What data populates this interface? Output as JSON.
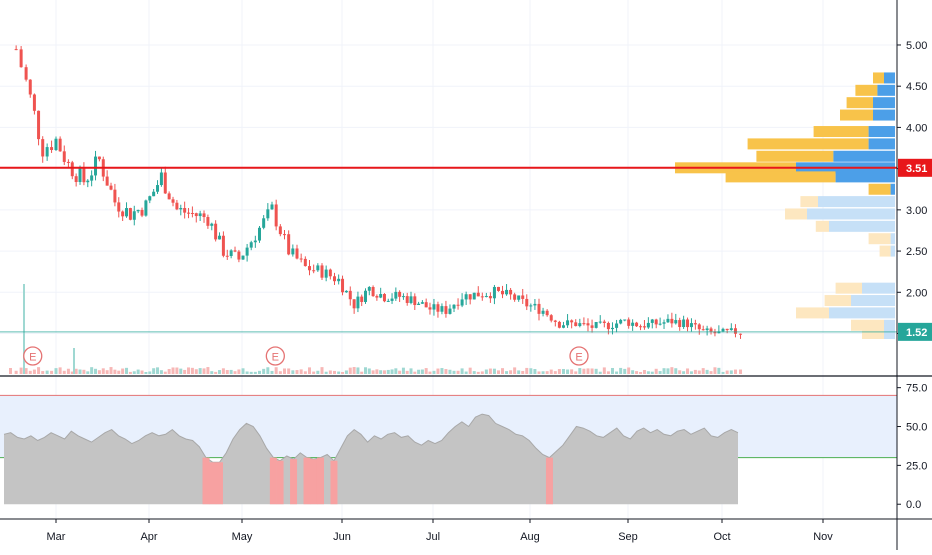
{
  "chart_data": [
    {
      "type": "candlestick",
      "x_ticks": [
        "Mar",
        "Apr",
        "May",
        "Jun",
        "Jul",
        "Aug",
        "Sep",
        "Oct",
        "Nov"
      ],
      "y_ticks": [
        "5.00",
        "4.50",
        "4.00",
        "3.50",
        "3.00",
        "2.50",
        "2.00",
        "1.50"
      ],
      "ylim": [
        1.3,
        5.4
      ],
      "price_lines": [
        {
          "value": 3.51,
          "label": "3.51",
          "color": "#e8171a"
        },
        {
          "value": 1.52,
          "label": "1.52",
          "color": "#26a69a"
        }
      ],
      "earnings_markers": [
        {
          "date": "Feb 22",
          "label": "E"
        },
        {
          "date": "May 11",
          "label": "E"
        },
        {
          "date": "Aug 16",
          "label": "E"
        }
      ],
      "close_series": {
        "dates": [
          "Feb 17",
          "Feb 20",
          "Feb 25",
          "Mar 1",
          "Mar 5",
          "Mar 10",
          "Mar 15",
          "Mar 20",
          "Mar 25",
          "Mar 30",
          "Apr 5",
          "Apr 10",
          "Apr 15",
          "Apr 20",
          "Apr 25",
          "Apr 30",
          "May 5",
          "May 10",
          "May 15",
          "May 20",
          "May 25",
          "May 30",
          "Jun 5",
          "Jun 10",
          "Jun 15",
          "Jun 20",
          "Jun 25",
          "Jun 30",
          "Jul 5",
          "Jul 10",
          "Jul 15",
          "Jul 20",
          "Jul 25",
          "Jul 30",
          "Aug 5",
          "Aug 10",
          "Aug 15",
          "Aug 20",
          "Aug 25",
          "Aug 30",
          "Sep 5",
          "Sep 10",
          "Sep 15",
          "Sep 20",
          "Sep 25",
          "Sep 30",
          "Oct 5",
          "Oct 8"
        ],
        "values": [
          4.95,
          4.55,
          3.75,
          3.85,
          3.55,
          3.35,
          3.6,
          3.1,
          2.95,
          3.05,
          3.4,
          3.0,
          2.95,
          2.9,
          2.5,
          2.4,
          2.7,
          3.0,
          2.5,
          2.3,
          2.25,
          2.15,
          1.85,
          2.05,
          1.95,
          1.95,
          1.9,
          1.8,
          1.78,
          1.95,
          1.98,
          2.0,
          1.95,
          1.85,
          1.78,
          1.62,
          1.62,
          1.58,
          1.6,
          1.65,
          1.6,
          1.62,
          1.65,
          1.62,
          1.52,
          1.5,
          1.52,
          1.52
        ]
      },
      "volume_profile": [
        {
          "price": 4.6,
          "up": 0.05,
          "down": 0.05
        },
        {
          "price": 4.45,
          "up": 0.1,
          "down": 0.08
        },
        {
          "price": 4.3,
          "up": 0.12,
          "down": 0.1
        },
        {
          "price": 4.15,
          "up": 0.15,
          "down": 0.1
        },
        {
          "price": 3.95,
          "up": 0.25,
          "down": 0.12
        },
        {
          "price": 3.8,
          "up": 0.55,
          "down": 0.12
        },
        {
          "price": 3.65,
          "up": 0.35,
          "down": 0.28
        },
        {
          "price": 3.51,
          "up": 0.55,
          "down": 0.45
        },
        {
          "price": 3.4,
          "up": 0.5,
          "down": 0.27
        },
        {
          "price": 3.25,
          "up": 0.1,
          "down": 0.02
        },
        {
          "price": 3.1,
          "up": 0.08,
          "down": 0.35
        },
        {
          "price": 2.95,
          "up": 0.1,
          "down": 0.4
        },
        {
          "price": 2.8,
          "up": 0.06,
          "down": 0.3
        },
        {
          "price": 2.65,
          "up": 0.1,
          "down": 0.02
        },
        {
          "price": 2.5,
          "up": 0.05,
          "down": 0.02
        },
        {
          "price": 2.05,
          "up": 0.12,
          "down": 0.15
        },
        {
          "price": 1.9,
          "up": 0.12,
          "down": 0.2
        },
        {
          "price": 1.75,
          "up": 0.15,
          "down": 0.3
        },
        {
          "price": 1.6,
          "up": 0.15,
          "down": 0.05
        },
        {
          "price": 1.5,
          "up": 0.1,
          "down": 0.05
        }
      ]
    },
    {
      "type": "area",
      "y_ticks": [
        "75.0",
        "50.0",
        "25.0",
        "0.0"
      ],
      "ylim": [
        -5,
        78
      ],
      "band": [
        30,
        70
      ],
      "oversold_level": 30,
      "values": [
        45,
        46,
        43,
        42,
        44,
        41,
        43,
        46,
        44,
        42,
        47,
        44,
        42,
        40,
        43,
        46,
        48,
        44,
        42,
        39,
        41,
        44,
        46,
        44,
        45,
        48,
        44,
        42,
        41,
        37,
        30,
        27,
        27,
        33,
        42,
        48,
        52,
        50,
        44,
        36,
        30,
        28,
        31,
        29,
        33,
        30,
        29,
        30,
        32,
        28,
        36,
        44,
        48,
        45,
        40,
        44,
        42,
        45,
        46,
        43,
        44,
        40,
        38,
        41,
        39,
        41,
        46,
        50,
        53,
        50,
        56,
        58,
        57,
        52,
        50,
        48,
        45,
        44,
        41,
        36,
        32,
        30,
        34,
        38,
        44,
        50,
        49,
        47,
        44,
        43,
        46,
        49,
        44,
        42,
        47,
        49,
        46,
        48,
        45,
        44,
        47,
        48,
        45,
        47,
        49,
        44,
        43,
        46,
        48,
        46
      ]
    }
  ]
}
